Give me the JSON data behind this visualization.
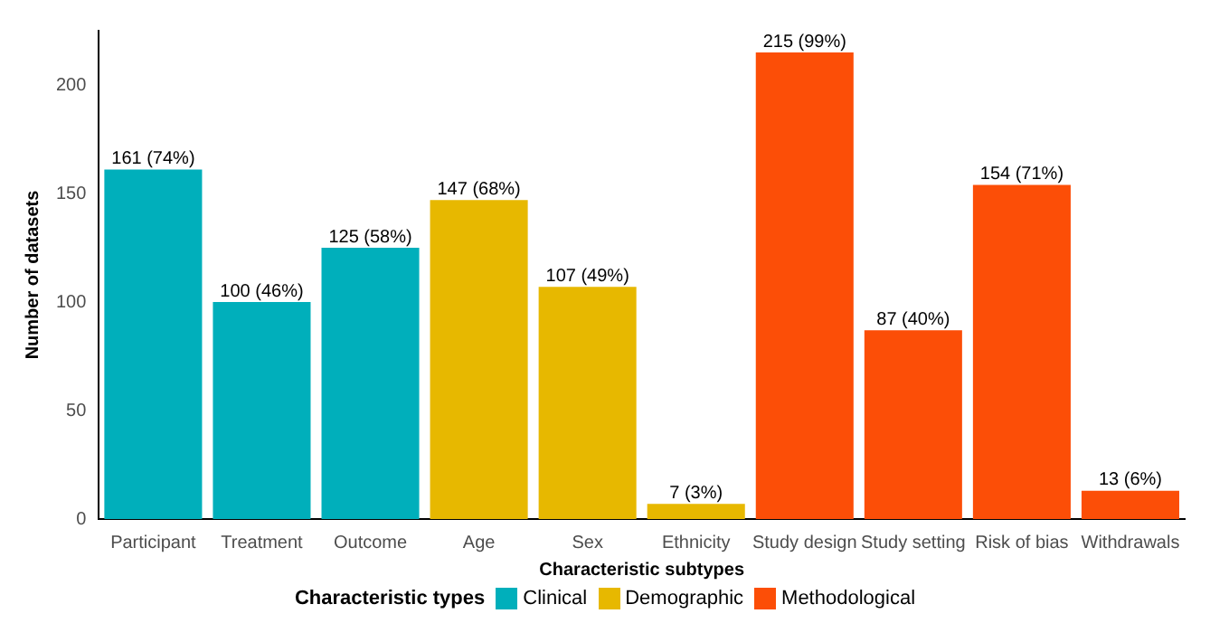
{
  "chart_data": {
    "type": "bar",
    "xlabel": "Characteristic subtypes",
    "ylabel": "Number of datasets",
    "legend_title": "Characteristic types",
    "legend": "bottom",
    "grid": false,
    "categories": [
      "Participant",
      "Treatment",
      "Outcome",
      "Age",
      "Sex",
      "Ethnicity",
      "Study design",
      "Study setting",
      "Risk of bias",
      "Withdrawals"
    ],
    "ylim": [
      0,
      225
    ],
    "yticks": [
      0,
      50,
      100,
      150,
      200
    ],
    "series": [
      {
        "name": "Clinical",
        "color": "#00afbb",
        "values": [
          161,
          100,
          125,
          null,
          null,
          null,
          null,
          null,
          null,
          null
        ],
        "value_labels": [
          "161 (74%)",
          "100 (46%)",
          "125 (58%)",
          null,
          null,
          null,
          null,
          null,
          null,
          null
        ]
      },
      {
        "name": "Demographic",
        "color": "#e7b800",
        "values": [
          null,
          null,
          null,
          147,
          107,
          7,
          null,
          null,
          null,
          null
        ],
        "value_labels": [
          null,
          null,
          null,
          "147 (68%)",
          "107 (49%)",
          "7 (3%)",
          null,
          null,
          null,
          null
        ]
      },
      {
        "name": "Methodological",
        "color": "#fc4e07",
        "values": [
          null,
          null,
          null,
          null,
          null,
          null,
          215,
          87,
          154,
          13
        ],
        "value_labels": [
          null,
          null,
          null,
          null,
          null,
          null,
          "215 (99%)",
          "87 (40%)",
          "154 (71%)",
          "13 (6%)"
        ]
      }
    ]
  }
}
